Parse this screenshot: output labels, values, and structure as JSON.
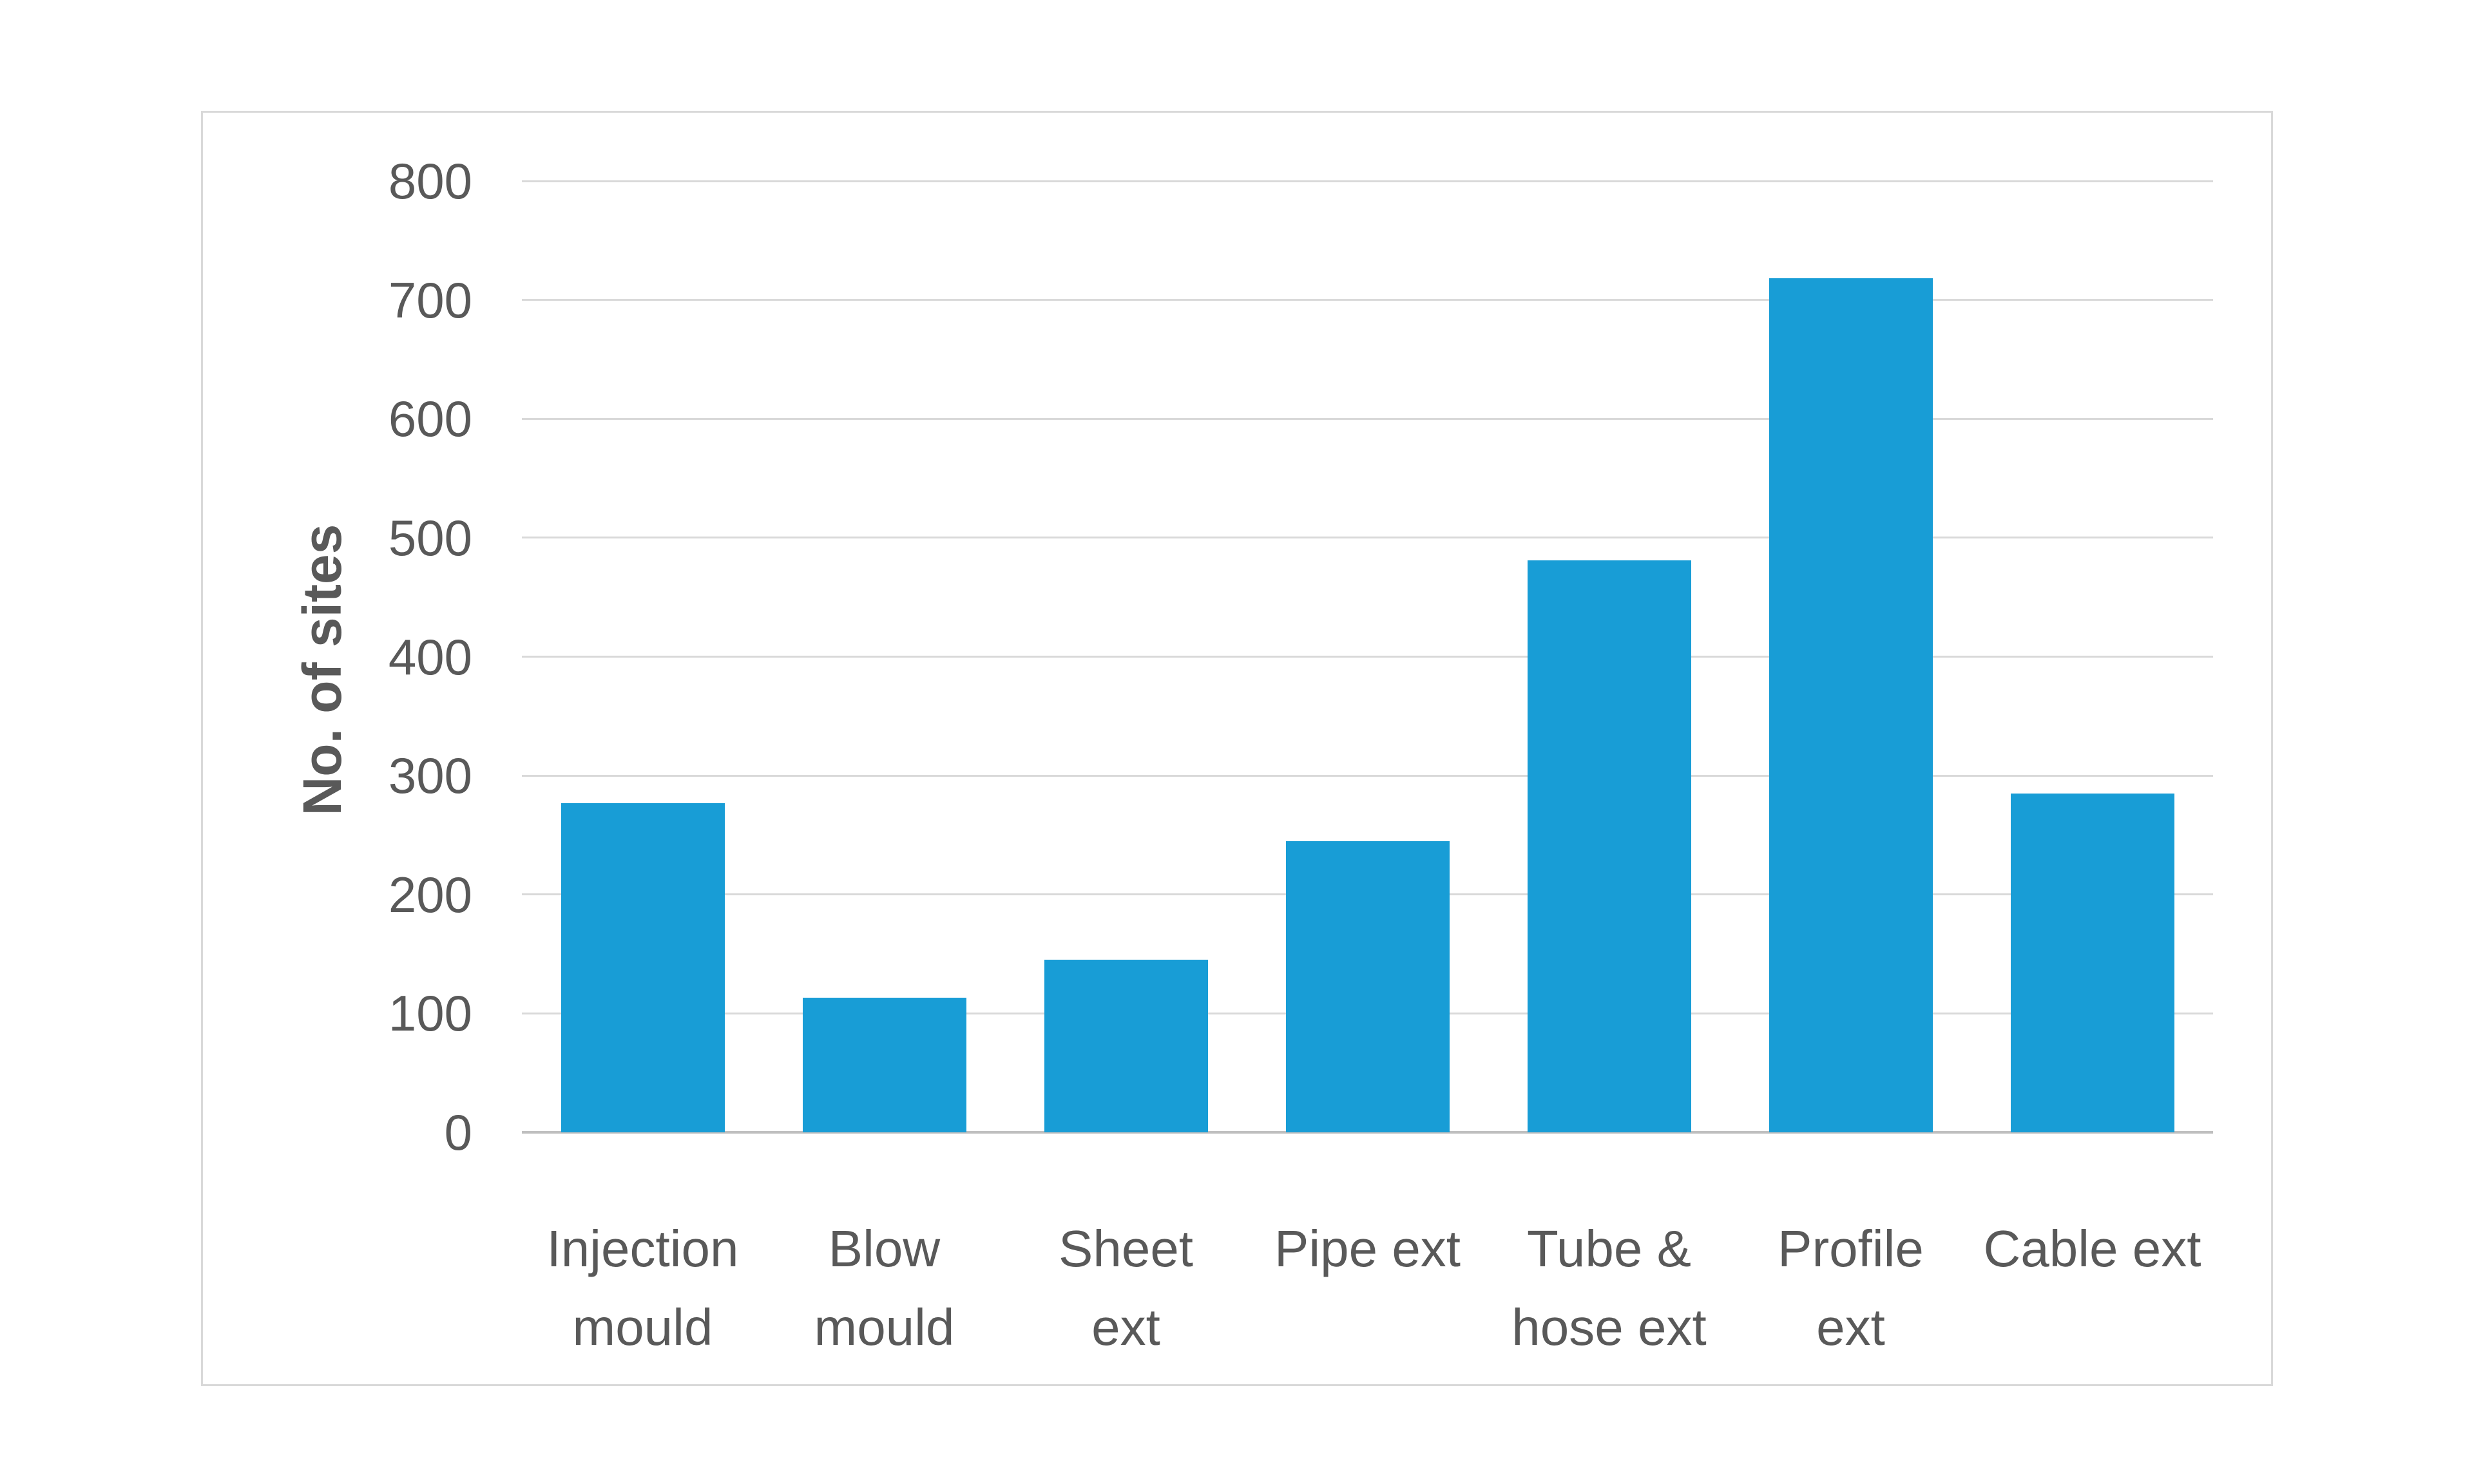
{
  "chart_data": {
    "type": "bar",
    "title": "",
    "xlabel": "",
    "ylabel": "No. of sites",
    "categories": [
      "Injection mould",
      "Blow mould",
      "Sheet ext",
      "Pipe ext",
      "Tube & hose ext",
      "Profile ext",
      "Cable ext"
    ],
    "category_label_lines": [
      "Injection\nmould",
      "Blow\nmould",
      "Sheet\next",
      "Pipe ext",
      "Tube &\nhose ext",
      "Profile\next",
      "Cable ext"
    ],
    "values": [
      277,
      113,
      145,
      245,
      481,
      718,
      285
    ],
    "ylim": [
      0,
      800
    ],
    "yticks": [
      0,
      100,
      200,
      300,
      400,
      500,
      600,
      700,
      800
    ],
    "grid": "horizontal-only",
    "legend": "none",
    "colors": {
      "bar": "#189DD6",
      "gridline": "#D9D9D9",
      "axis_line": "#BFBFBF",
      "labels": "#595959",
      "chart_border": "#D9D9D9",
      "background": "#FFFFFF"
    }
  }
}
